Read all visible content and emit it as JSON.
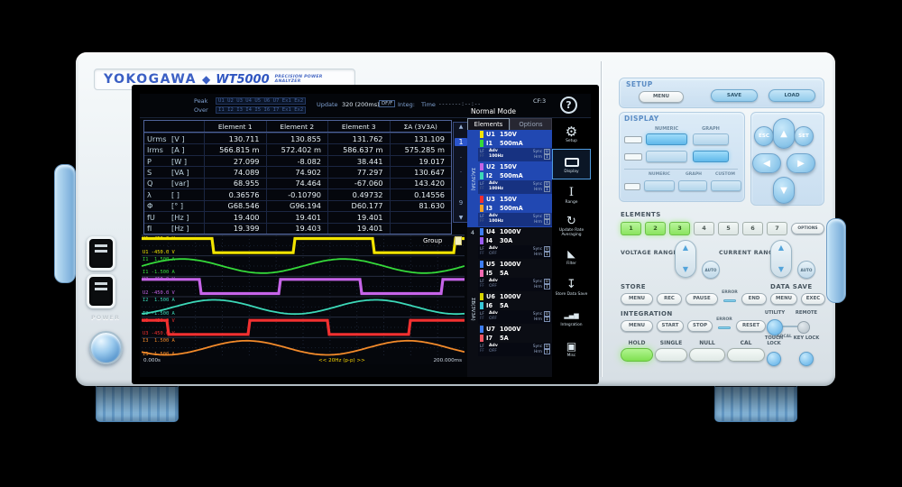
{
  "brand": {
    "logo": "YOKOGAWA",
    "diamond": "◆",
    "model": "WT5000",
    "tagline": "PRECISION POWER ANALYZER"
  },
  "side": {
    "power": "POWER"
  },
  "screen": {
    "statusbar": {
      "peak_label": "Peak",
      "over_label": "Over",
      "peak_row": "U1 U2 U3 U4 U5 U6 U7 Ex1 Ex2",
      "over_row": "I1 I2 I3 I4 I5 I6 I7 Ex1 Ex2",
      "update_label": "Update",
      "update_value": "320 (200ms)",
      "update_mode": "DF/F",
      "integ_label": "Integ:",
      "time_label": "Time",
      "time_value": "-------:--:--"
    },
    "header": {
      "mode": "Normal Mode",
      "cf": "CF:3",
      "help": "?"
    },
    "tabs": [
      {
        "label": "Elements",
        "active": true
      },
      {
        "label": "Options",
        "active": false
      }
    ],
    "table": {
      "headers": [
        "Element 1",
        "Element 2",
        "Element 3",
        "ΣA (3V3A)"
      ],
      "rows": [
        {
          "name": "Urms",
          "unit": "[V  ]",
          "values": [
            "130.711",
            "130.855",
            "131.762",
            "131.109"
          ]
        },
        {
          "name": "Irms",
          "unit": "[A  ]",
          "values": [
            "566.815 m",
            "572.402 m",
            "586.637 m",
            "575.285 m"
          ]
        },
        {
          "name": "P",
          "unit": "[W  ]",
          "values": [
            "27.099",
            "-8.082",
            "38.441",
            "19.017"
          ]
        },
        {
          "name": "S",
          "unit": "[VA ]",
          "values": [
            "74.089",
            "74.902",
            "77.297",
            "130.647"
          ]
        },
        {
          "name": "Q",
          "unit": "[var]",
          "values": [
            "68.955",
            "74.464",
            "-67.060",
            "143.420"
          ]
        },
        {
          "name": "λ",
          "unit": "[   ]",
          "values": [
            "0.36576",
            "-0.10790",
            "0.49732",
            "0.14556"
          ]
        },
        {
          "name": "Φ",
          "unit": "[°  ]",
          "values": [
            "G68.546",
            "G96.194",
            "D60.177",
            "81.630"
          ]
        },
        {
          "name": "fU",
          "unit": "[Hz ]",
          "values": [
            "19.400",
            "19.401",
            "19.401",
            ""
          ]
        },
        {
          "name": "fI",
          "unit": "[Hz ]",
          "values": [
            "19.399",
            "19.403",
            "19.401",
            ""
          ]
        }
      ]
    },
    "pagination": {
      "up": "▲",
      "current": "1",
      "dots": [
        "·",
        "·",
        "·"
      ],
      "last": "9",
      "down": "▼"
    },
    "waveform": {
      "group_label": "Group",
      "start_time": "0.000s",
      "center_label": "<< 20Hz (p-p) >>",
      "end_time": "200.000ms",
      "cycles": 2,
      "channels": [
        {
          "label": "U1",
          "top": "450.0 V",
          "bottom": "-450.0 V",
          "color": "#f2e400",
          "type": "square",
          "phase": 0.06
        },
        {
          "label": "I1",
          "top": "1.500 A",
          "bottom": "-1.500 A",
          "color": "#35d93a",
          "type": "sine",
          "phase": 0.0
        },
        {
          "label": "U2",
          "top": "450.0 V",
          "bottom": "-450.0 V",
          "color": "#c664e8",
          "type": "square",
          "phase": 0.14
        },
        {
          "label": "I2",
          "top": "1.500 A",
          "bottom": "-1.500 A",
          "color": "#3cd8b8",
          "type": "sine",
          "phase": 0.8
        },
        {
          "label": "U3",
          "top": "450.0 V",
          "bottom": "-450.0 V",
          "color": "#f23030",
          "type": "square",
          "phase": 0.34
        },
        {
          "label": "I3",
          "top": "1.500 A",
          "bottom": "-1.500 A",
          "color": "#f28a2a",
          "type": "sine",
          "phase": 0.6
        }
      ]
    },
    "elements_panel": {
      "footer_labels": {
        "lf": "LF",
        "ff": "FF",
        "adv": "Adv",
        "sync": "Sync",
        "hrm": "Hrm",
        "sync_tag": "U",
        "hrm_tag": "1"
      },
      "groups": [
        {
          "label": "ΣA(3V3A)",
          "selected": true,
          "elements": [
            {
              "u_ch": "U1",
              "u_val": "150V",
              "u_color": "#f2e400",
              "i_ch": "I1",
              "i_val": "500mA",
              "i_color": "#35d93a",
              "adv": "100Hz"
            },
            {
              "u_ch": "U2",
              "u_val": "150V",
              "u_color": "#c664e8",
              "i_ch": "I2",
              "i_val": "500mA",
              "i_color": "#3cd8b8",
              "adv": "100Hz"
            },
            {
              "u_ch": "U3",
              "u_val": "150V",
              "u_color": "#f23030",
              "i_ch": "I3",
              "i_val": "500mA",
              "i_color": "#f2a42a",
              "adv": "100Hz"
            }
          ]
        },
        {
          "label": "4",
          "selected": false,
          "elements": [
            {
              "u_ch": "U4",
              "u_val": "1000V",
              "u_color": "#3d7df2",
              "i_ch": "I4",
              "i_val": "30A",
              "i_color": "#9a5cf2",
              "adv": "OFF"
            }
          ]
        },
        {
          "label": "ΣB(3V3A)",
          "selected": false,
          "elements": [
            {
              "u_ch": "U5",
              "u_val": "1000V",
              "u_color": "#3d7df2",
              "i_ch": "I5",
              "i_val": "5A",
              "i_color": "#f26ab2",
              "adv": "OFF"
            },
            {
              "u_ch": "U6",
              "u_val": "1000V",
              "u_color": "#d8d400",
              "i_ch": "I6",
              "i_val": "5A",
              "i_color": "#38c8d8",
              "adv": "OFF"
            },
            {
              "u_ch": "U7",
              "u_val": "1000V",
              "u_color": "#3d7df2",
              "i_ch": "I7",
              "i_val": "5A",
              "i_color": "#f25562",
              "adv": "OFF"
            }
          ]
        }
      ]
    },
    "menu": [
      {
        "icon": "gear",
        "label": "Setup",
        "active": false
      },
      {
        "icon": "display",
        "label": "Display",
        "active": true
      },
      {
        "icon": "range",
        "label": "Range",
        "active": false
      },
      {
        "icon": "update",
        "label": "Update Rate Averaging",
        "active": false
      },
      {
        "icon": "filter",
        "label": "Filter",
        "active": false
      },
      {
        "icon": "store",
        "label": "Store Data Save",
        "active": false
      },
      {
        "icon": "integration",
        "label": "Integration",
        "active": false
      },
      {
        "icon": "misc",
        "label": "Misc",
        "active": false
      }
    ]
  },
  "panel": {
    "setup": {
      "title": "SETUP",
      "menu": "MENU",
      "save": "SAVE",
      "load": "LOAD"
    },
    "display": {
      "title": "DISPLAY",
      "top_labels": [
        "NUMERIC",
        "GRAPH"
      ],
      "bottom_labels": [
        "NUMERIC",
        "GRAPH",
        "CUSTOM"
      ]
    },
    "nav": {
      "esc": "ESC",
      "set": "SET"
    },
    "elements": {
      "title": "ELEMENTS",
      "buttons": [
        "1",
        "2",
        "3",
        "4",
        "5",
        "6",
        "7"
      ],
      "lit": [
        1,
        2,
        3
      ],
      "options": "OPTIONS"
    },
    "voltage_range": {
      "label": "VOLTAGE RANGE",
      "auto": "AUTO"
    },
    "current_range": {
      "label": "CURRENT RANGE",
      "auto": "AUTO"
    },
    "store": {
      "title": "STORE",
      "buttons": [
        "MENU",
        "REC",
        "PAUSE"
      ],
      "error": "ERROR",
      "end": "END"
    },
    "data_save": {
      "title": "DATA SAVE",
      "menu": "MENU",
      "exec": "EXEC"
    },
    "integration": {
      "title": "INTEGRATION",
      "buttons": [
        "MENU",
        "START",
        "STOP"
      ],
      "error": "ERROR",
      "reset": "RESET"
    },
    "utility": {
      "utility": "UTILITY",
      "remote": "REMOTE",
      "local": "LOCAL"
    },
    "locks": {
      "touch": "TOUCH LOCK",
      "key": "KEY LOCK"
    },
    "bottom": {
      "hold": "HOLD",
      "single": "SINGLE",
      "null": "NULL",
      "cal": "CAL"
    }
  }
}
